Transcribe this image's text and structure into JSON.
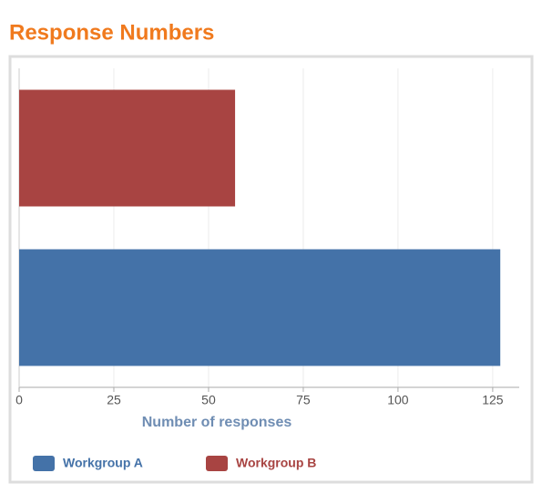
{
  "chart_data": {
    "type": "bar",
    "orientation": "horizontal",
    "title": "Response Numbers",
    "xlabel": "Number of responses",
    "series": [
      {
        "name": "Workgroup A",
        "color": "#4472a8",
        "values": [
          127
        ]
      },
      {
        "name": "Workgroup B",
        "color": "#a84442",
        "values": [
          57
        ]
      }
    ],
    "xlim": [
      0,
      132
    ],
    "xticks": [
      0,
      25,
      50,
      75,
      100,
      125
    ],
    "grid": true,
    "legend": "bottom"
  }
}
